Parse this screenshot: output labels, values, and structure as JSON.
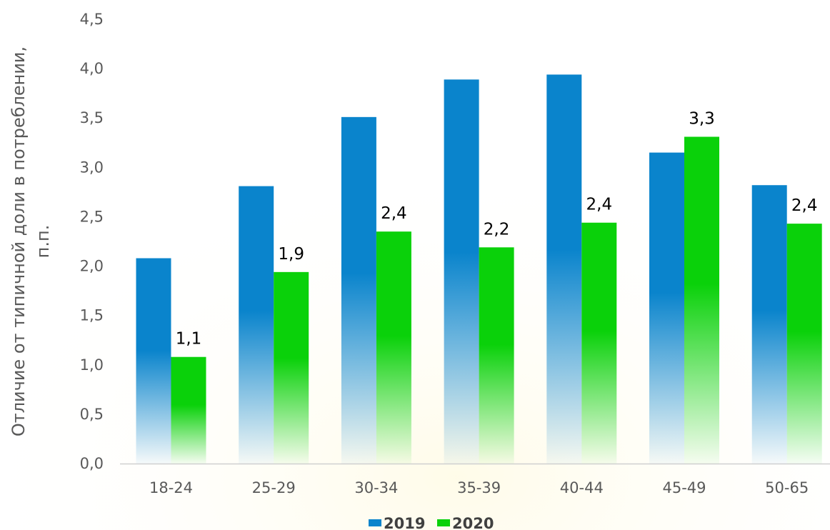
{
  "chart_data": {
    "type": "bar",
    "categories": [
      "18-24",
      "25-29",
      "30-34",
      "35-39",
      "40-44",
      "45-49",
      "50-65"
    ],
    "series": [
      {
        "name": "2019",
        "values": [
          2.08,
          2.81,
          3.51,
          3.89,
          3.94,
          3.15,
          2.82
        ],
        "labels": [
          "",
          "",
          "",
          "",
          "",
          "",
          ""
        ],
        "color": "#0a84cc"
      },
      {
        "name": "2020",
        "values": [
          1.08,
          1.94,
          2.35,
          2.19,
          2.44,
          3.31,
          2.43
        ],
        "labels": [
          "1,1",
          "1,9",
          "2,4",
          "2,2",
          "2,4",
          "3,3",
          "2,4"
        ],
        "color": "#0ad10a"
      }
    ],
    "ylabel_lines": [
      "Отличие от типичной доли в потреблении,",
      "п.п."
    ],
    "xlabel": "",
    "ylim": [
      0,
      4.5
    ],
    "yticks": [
      "0,0",
      "0,5",
      "1,0",
      "1,5",
      "2,0",
      "2,5",
      "3,0",
      "3,5",
      "4,0",
      "4,5"
    ],
    "grid": false,
    "legend_position": "bottom"
  }
}
